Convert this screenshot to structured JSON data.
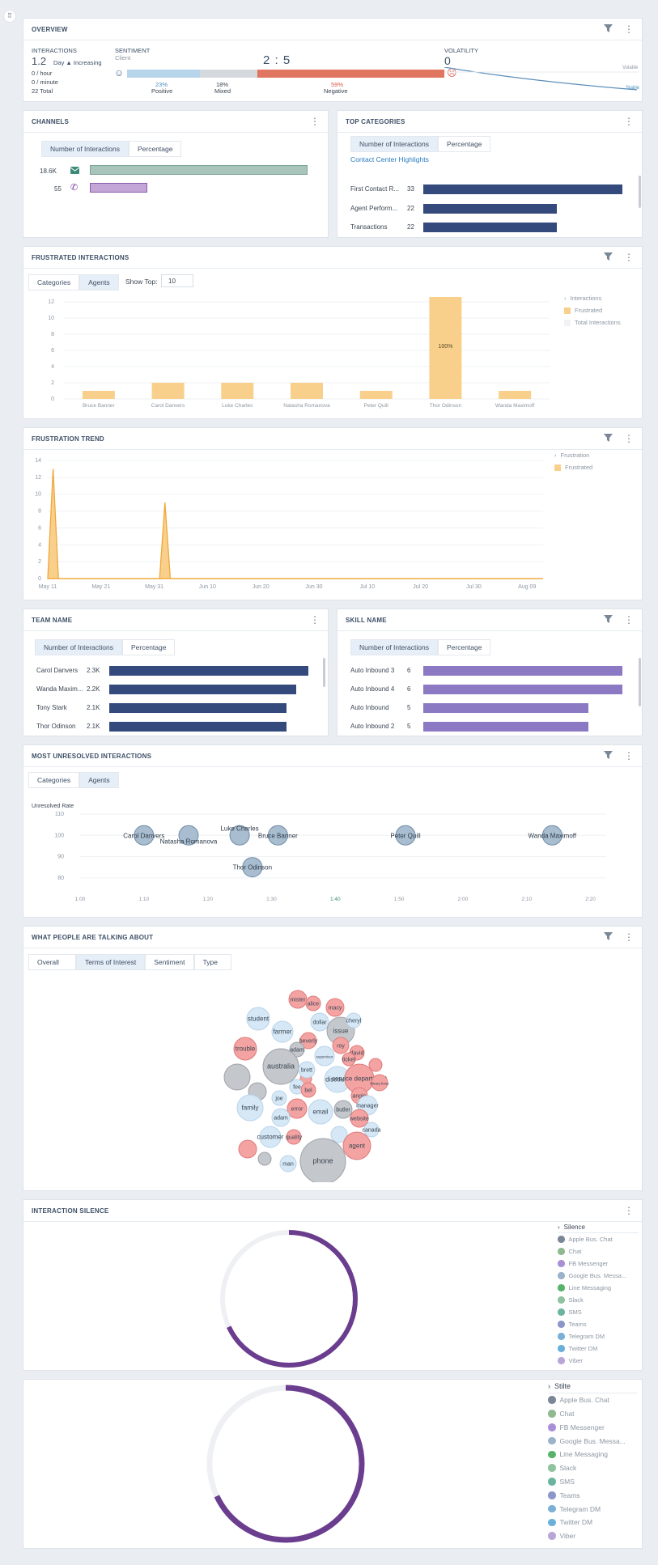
{
  "overview": {
    "title": "OVERVIEW",
    "interactions_label": "INTERACTIONS",
    "interactions_value": "1.2",
    "interactions_trend": "Day ▲ Increasing",
    "per_hour": "0 / hour",
    "per_minute": "0 / minute",
    "total": "22 Total",
    "sentiment_label": "SENTIMENT",
    "sentiment_sub": "Client",
    "ratio": "2 : 5",
    "positive_pct": "23%",
    "positive_label": "Positive",
    "mixed_pct": "18%",
    "mixed_label": "Mixed",
    "negative_pct": "59%",
    "negative_label": "Negative",
    "positive_fraction": 0.23,
    "mixed_fraction": 0.18,
    "negative_fraction": 0.59,
    "volatility_label": "VOLATILITY",
    "volatility_value": "0",
    "volatile_label": "Volatile",
    "stable_label": "Stable"
  },
  "channels": {
    "title": "CHANNELS",
    "tabs": [
      "Number of Interactions",
      "Percentage"
    ],
    "rows": [
      {
        "value": "18.6K",
        "fraction": 0.99,
        "color": "#a8c4bb",
        "icon": "email-icon"
      },
      {
        "value": "55",
        "fraction": 0.26,
        "color": "#c3a6d6",
        "icon": "phone-icon"
      }
    ]
  },
  "top_categories": {
    "title": "TOP CATEGORIES",
    "tabs": [
      "Number of Interactions",
      "Percentage"
    ],
    "link": "Contact Center Highlights",
    "rows": [
      {
        "label": "First Contact R...",
        "value": "33",
        "fraction": 1.0
      },
      {
        "label": "Agent Perform...",
        "value": "22",
        "fraction": 0.67
      },
      {
        "label": "Transactions",
        "value": "22",
        "fraction": 0.67
      }
    ]
  },
  "frustrated": {
    "title": "FRUSTRATED INTERACTIONS",
    "tabs": [
      "Categories",
      "Agents"
    ],
    "show_top_label": "Show Top:",
    "show_top_value": "10",
    "legend_title": "Interactions",
    "legend": [
      "Frustrated",
      "Total Interactions"
    ],
    "bar_label": "100%"
  },
  "frustration_trend": {
    "title": "FRUSTRATION TREND",
    "legend_title": "Frustration",
    "legend": [
      "Frustrated"
    ]
  },
  "team": {
    "title": "TEAM NAME",
    "tabs": [
      "Number of Interactions",
      "Percentage"
    ],
    "rows": [
      {
        "label": "Carol Danvers",
        "value": "2.3K",
        "fraction": 1.0
      },
      {
        "label": "Wanda Maxim...",
        "value": "2.2K",
        "fraction": 0.94
      },
      {
        "label": "Tony Stark",
        "value": "2.1K",
        "fraction": 0.89
      },
      {
        "label": "Thor Odinson",
        "value": "2.1K",
        "fraction": 0.89
      }
    ]
  },
  "skill": {
    "title": "SKILL NAME",
    "tabs": [
      "Number of Interactions",
      "Percentage"
    ],
    "rows": [
      {
        "label": "Auto Inbound 3",
        "value": "6",
        "fraction": 1.0
      },
      {
        "label": "Auto Inbound 4",
        "value": "6",
        "fraction": 1.0
      },
      {
        "label": "Auto Inbound",
        "value": "5",
        "fraction": 0.83
      },
      {
        "label": "Auto Inbound 2",
        "value": "5",
        "fraction": 0.83
      }
    ]
  },
  "unresolved": {
    "title": "MOST UNRESOLVED INTERACTIONS",
    "tabs": [
      "Categories",
      "Agents"
    ],
    "ylabel": "Unresolved Rate"
  },
  "talking": {
    "title": "WHAT PEOPLE ARE TALKING ABOUT",
    "tabs": [
      "Overall",
      "Terms of Interest",
      "Sentiment",
      "Type"
    ]
  },
  "silence": {
    "title": "INTERACTION SILENCE",
    "legend_title": "Silence",
    "legend": [
      "Apple Bus. Chat",
      "Chat",
      "FB Messenger",
      "Google Bus. Messa...",
      "Line Messaging",
      "Slack",
      "SMS",
      "Teams",
      "Telegram DM",
      "Twitter DM",
      "Viber"
    ],
    "fraction": 0.68
  },
  "silence2": {
    "legend_title": "Stilte",
    "legend": [
      "Apple Bus. Chat",
      "Chat",
      "FB Messenger",
      "Google Bus. Messa...",
      "Line Messaging",
      "Slack",
      "SMS",
      "Teams",
      "Telegram DM",
      "Twitter DM",
      "Viber"
    ],
    "fraction": 0.68
  },
  "colors": {
    "navy": "#344a7c",
    "purple": "#8c79c4",
    "orange": "#f0a73a",
    "amber": "#f8d08c",
    "donut": "#6b3d8f",
    "positive": "#b7d5ea",
    "mixed": "#d5d9de",
    "negative": "#e07560"
  },
  "chart_data": [
    {
      "type": "bar",
      "title": "FRUSTRATED INTERACTIONS",
      "categories": [
        "Bruce Banner",
        "Carol Danvers",
        "Luke Charles",
        "Natasha Romanova",
        "Peter Quill",
        "Thor Odinson",
        "Wanda Maximoff"
      ],
      "values": [
        1,
        2,
        2,
        2,
        1,
        13,
        1
      ],
      "ylim": [
        0,
        12
      ],
      "yticks": [
        "0",
        "2",
        "4",
        "6",
        "8",
        "10",
        "12"
      ]
    },
    {
      "type": "area",
      "title": "FRUSTRATION TREND",
      "x": [
        "2024-05-11",
        "2024-05-12",
        "2024-05-13",
        "2024-06-01",
        "2024-06-02",
        "2024-06-03",
        "2024-08-09"
      ],
      "values": [
        0,
        13,
        0,
        0,
        9,
        0,
        0
      ],
      "ylim": [
        0,
        14
      ],
      "yticks": [
        "0",
        "2",
        "4",
        "6",
        "8",
        "10",
        "12",
        "14"
      ],
      "xticks": [
        "May 11",
        "May 21",
        "May 31",
        "Jun 10",
        "Jun 20",
        "Jun 30",
        "Jul 10",
        "Jul 20",
        "Jul 30",
        "Aug 09"
      ],
      "series": [
        {
          "name": "Frustrated"
        }
      ]
    },
    {
      "type": "scatter",
      "title": "MOST UNRESOLVED INTERACTIONS",
      "ylabel": "Unresolved Rate",
      "xticks": [
        "1:00",
        "1:10",
        "1:20",
        "1:30",
        "1:40",
        "1:50",
        "2:00",
        "2:10",
        "2:20"
      ],
      "yticks": [
        "80",
        "90",
        "100",
        "110"
      ],
      "xlim": [
        60,
        145
      ],
      "ylim": [
        75,
        110
      ],
      "points": [
        {
          "label": "Carol Danvers",
          "x": 70,
          "y": 100
        },
        {
          "label": "Natasha Romanova",
          "x": 77,
          "y": 100
        },
        {
          "label": "Luke Charles",
          "x": 85,
          "y": 100
        },
        {
          "label": "Bruce Banner",
          "x": 91,
          "y": 100
        },
        {
          "label": "Peter Quill",
          "x": 111,
          "y": 100
        },
        {
          "label": "Wanda Maximoff",
          "x": 134,
          "y": 100
        },
        {
          "label": "Thor Odinson",
          "x": 87,
          "y": 85
        }
      ]
    },
    {
      "type": "scatter",
      "title": "WHAT PEOPLE ARE TALKING ABOUT",
      "bubbles": [
        {
          "label": "mister",
          "tone": "n"
        },
        {
          "label": "alice",
          "tone": "n"
        },
        {
          "label": "macy",
          "tone": "n"
        },
        {
          "label": "student",
          "tone": "p"
        },
        {
          "label": "dollar",
          "tone": "p"
        },
        {
          "label": "issue",
          "tone": "g"
        },
        {
          "label": "cheryl",
          "tone": "p"
        },
        {
          "label": "farmer",
          "tone": "p"
        },
        {
          "label": "beverly",
          "tone": "n"
        },
        {
          "label": "roy",
          "tone": "n"
        },
        {
          "label": "david",
          "tone": "n"
        },
        {
          "label": "trouble",
          "tone": "n"
        },
        {
          "label": "adam",
          "tone": "g"
        },
        {
          "label": "supervisor",
          "tone": "p"
        },
        {
          "label": "ticket",
          "tone": "n"
        },
        {
          "label": "australia",
          "tone": "g"
        },
        {
          "label": "brett",
          "tone": "p"
        },
        {
          "label": "discount",
          "tone": "p"
        },
        {
          "label": "service department",
          "tone": "n"
        },
        {
          "label": "library boss",
          "tone": "n"
        },
        {
          "label": "fee",
          "tone": "p"
        },
        {
          "label": "angie",
          "tone": "n"
        },
        {
          "label": "joe",
          "tone": "p"
        },
        {
          "label": "bel",
          "tone": "n"
        },
        {
          "label": "manager",
          "tone": "p"
        },
        {
          "label": "family",
          "tone": "p"
        },
        {
          "label": "error",
          "tone": "n"
        },
        {
          "label": "email",
          "tone": "p"
        },
        {
          "label": "butler",
          "tone": "g"
        },
        {
          "label": "website",
          "tone": "n"
        },
        {
          "label": "adam",
          "tone": "p"
        },
        {
          "label": "canada",
          "tone": "p"
        },
        {
          "label": "customer",
          "tone": "p"
        },
        {
          "label": "quality",
          "tone": "n"
        },
        {
          "label": "agent",
          "tone": "n"
        },
        {
          "label": "phone",
          "tone": "g"
        },
        {
          "label": "man",
          "tone": "p"
        }
      ]
    }
  ]
}
